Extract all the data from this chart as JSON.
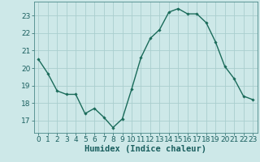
{
  "x": [
    0,
    1,
    2,
    3,
    4,
    5,
    6,
    7,
    8,
    9,
    10,
    11,
    12,
    13,
    14,
    15,
    16,
    17,
    18,
    19,
    20,
    21,
    22,
    23
  ],
  "y": [
    20.5,
    19.7,
    18.7,
    18.5,
    18.5,
    17.4,
    17.7,
    17.2,
    16.6,
    17.1,
    18.8,
    20.6,
    21.7,
    22.2,
    23.2,
    23.4,
    23.1,
    23.1,
    22.6,
    21.5,
    20.1,
    19.4,
    18.4,
    18.2
  ],
  "line_color": "#1a6b5a",
  "marker": "D",
  "marker_size": 1.8,
  "line_width": 1.0,
  "xlabel": "Humidex (Indice chaleur)",
  "xlabel_fontsize": 7.5,
  "bg_color": "#cde8e8",
  "grid_color": "#aacece",
  "axis_bg": "#cde8e8",
  "xlim": [
    -0.5,
    23.5
  ],
  "ylim": [
    16.3,
    23.8
  ],
  "yticks": [
    17,
    18,
    19,
    20,
    21,
    22,
    23
  ],
  "xticks": [
    0,
    1,
    2,
    3,
    4,
    5,
    6,
    7,
    8,
    9,
    10,
    11,
    12,
    13,
    14,
    15,
    16,
    17,
    18,
    19,
    20,
    21,
    22,
    23
  ],
  "tick_fontsize": 6.5,
  "tick_color": "#1a5f5f"
}
